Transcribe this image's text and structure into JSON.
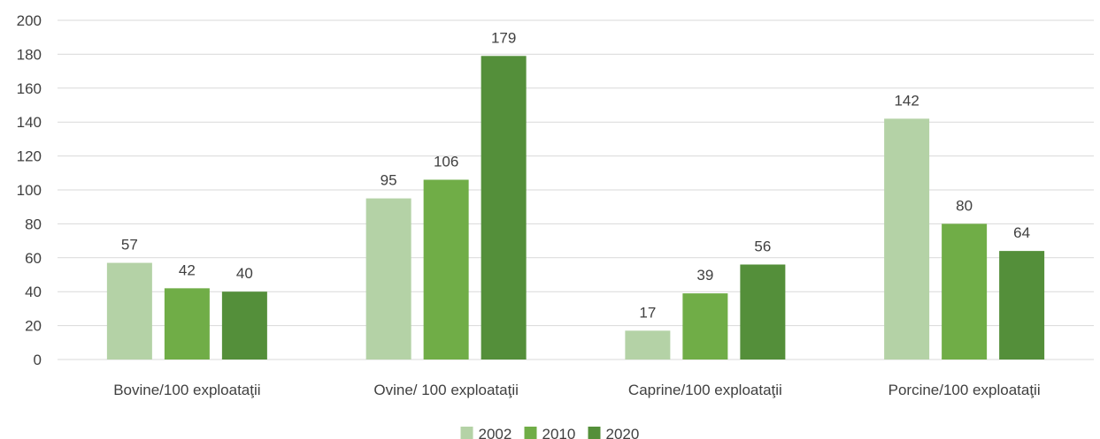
{
  "chart_data": {
    "type": "bar",
    "title": "",
    "xlabel": "",
    "ylabel": "",
    "ylim": [
      0,
      200
    ],
    "yticks": [
      0,
      20,
      40,
      60,
      80,
      100,
      120,
      140,
      160,
      180,
      200
    ],
    "grid": true,
    "legend_position": "bottom",
    "categories": [
      "Bovine/100 exploataţii",
      "Ovine/ 100 exploataţii",
      "Caprine/100 exploataţii",
      "Porcine/100 exploataţii"
    ],
    "series": [
      {
        "name": "2002",
        "color": "#b4d2a6",
        "values": [
          57,
          95,
          17,
          142
        ]
      },
      {
        "name": "2010",
        "color": "#70ad47",
        "values": [
          42,
          106,
          39,
          80
        ]
      },
      {
        "name": "2020",
        "color": "#548f3a",
        "values": [
          40,
          179,
          56,
          64
        ]
      }
    ],
    "data_labels": true
  }
}
